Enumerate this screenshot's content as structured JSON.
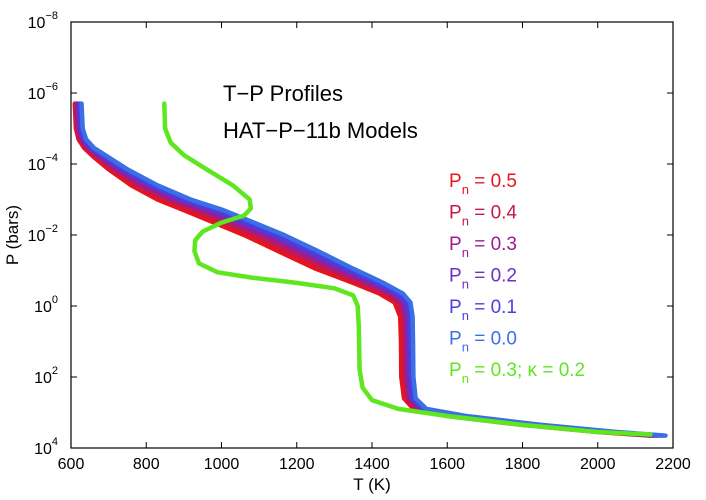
{
  "chart_data": {
    "type": "line",
    "title_lines": [
      "T−P Profiles",
      "HAT−P−11b Models"
    ],
    "xlabel": "T (K)",
    "ylabel": "P (bars)",
    "xlim": [
      600,
      2200
    ],
    "ylim_log_exponent": [
      -8,
      4
    ],
    "y_axis_reversed": true,
    "x_ticks": [
      600,
      800,
      1000,
      1200,
      1400,
      1600,
      1800,
      2000,
      2200
    ],
    "x_tick_labels": [
      "600",
      "800",
      "1000",
      "1200",
      "1400",
      "1600",
      "1800",
      "2000",
      "2200"
    ],
    "y_tick_exponents": [
      -8,
      -6,
      -4,
      -2,
      0,
      2,
      4
    ],
    "y_tick_base": "10",
    "y_tick_exp_labels": [
      "−8",
      "−6",
      "−4",
      "−2",
      "0",
      "2",
      "4"
    ],
    "series": [
      {
        "name": "Pn = 0.5",
        "legend": {
          "prefix": "P",
          "sub": "n",
          "suffix": " = 0.5"
        },
        "color": "#e8141c",
        "points": [
          [
            610,
            -5.7
          ],
          [
            613,
            -5.0
          ],
          [
            620,
            -4.7
          ],
          [
            635,
            -4.45
          ],
          [
            660,
            -4.2
          ],
          [
            700,
            -3.85
          ],
          [
            760,
            -3.4
          ],
          [
            830,
            -3.0
          ],
          [
            900,
            -2.7
          ],
          [
            980,
            -2.35
          ],
          [
            1060,
            -2.0
          ],
          [
            1150,
            -1.55
          ],
          [
            1250,
            -1.05
          ],
          [
            1350,
            -0.65
          ],
          [
            1420,
            -0.35
          ],
          [
            1460,
            -0.1
          ],
          [
            1475,
            0.3
          ],
          [
            1477,
            1.0
          ],
          [
            1478,
            2.0
          ],
          [
            1485,
            2.6
          ],
          [
            1510,
            2.9
          ],
          [
            1600,
            3.1
          ],
          [
            1800,
            3.35
          ],
          [
            2000,
            3.55
          ],
          [
            2140,
            3.65
          ]
        ]
      },
      {
        "name": "Pn = 0.4",
        "legend": {
          "prefix": "P",
          "sub": "n",
          "suffix": " = 0.4"
        },
        "color": "#c91848",
        "points": [
          [
            613,
            -5.7
          ],
          [
            616,
            -5.0
          ],
          [
            624,
            -4.7
          ],
          [
            640,
            -4.45
          ],
          [
            668,
            -4.2
          ],
          [
            710,
            -3.85
          ],
          [
            775,
            -3.4
          ],
          [
            850,
            -3.0
          ],
          [
            925,
            -2.7
          ],
          [
            1005,
            -2.35
          ],
          [
            1085,
            -2.0
          ],
          [
            1175,
            -1.55
          ],
          [
            1275,
            -1.05
          ],
          [
            1370,
            -0.65
          ],
          [
            1435,
            -0.35
          ],
          [
            1470,
            -0.1
          ],
          [
            1483,
            0.3
          ],
          [
            1485,
            1.0
          ],
          [
            1486,
            2.0
          ],
          [
            1492,
            2.6
          ],
          [
            1518,
            2.9
          ],
          [
            1610,
            3.1
          ],
          [
            1810,
            3.35
          ],
          [
            2010,
            3.55
          ],
          [
            2148,
            3.65
          ]
        ]
      },
      {
        "name": "Pn = 0.3",
        "legend": {
          "prefix": "P",
          "sub": "n",
          "suffix": " = 0.3"
        },
        "color": "#9b1d8f",
        "points": [
          [
            616,
            -5.7
          ],
          [
            619,
            -5.0
          ],
          [
            628,
            -4.7
          ],
          [
            645,
            -4.45
          ],
          [
            676,
            -4.2
          ],
          [
            720,
            -3.85
          ],
          [
            790,
            -3.4
          ],
          [
            870,
            -3.0
          ],
          [
            950,
            -2.7
          ],
          [
            1030,
            -2.35
          ],
          [
            1110,
            -2.0
          ],
          [
            1200,
            -1.55
          ],
          [
            1300,
            -1.05
          ],
          [
            1390,
            -0.65
          ],
          [
            1450,
            -0.35
          ],
          [
            1480,
            -0.1
          ],
          [
            1490,
            0.3
          ],
          [
            1492,
            1.0
          ],
          [
            1493,
            2.0
          ],
          [
            1499,
            2.6
          ],
          [
            1525,
            2.9
          ],
          [
            1620,
            3.1
          ],
          [
            1820,
            3.35
          ],
          [
            2020,
            3.55
          ],
          [
            2156,
            3.65
          ]
        ]
      },
      {
        "name": "Pn = 0.2",
        "legend": {
          "prefix": "P",
          "sub": "n",
          "suffix": " = 0.2"
        },
        "color": "#6a2fc4",
        "points": [
          [
            620,
            -5.7
          ],
          [
            623,
            -5.0
          ],
          [
            632,
            -4.7
          ],
          [
            651,
            -4.45
          ],
          [
            684,
            -4.2
          ],
          [
            732,
            -3.85
          ],
          [
            805,
            -3.4
          ],
          [
            888,
            -3.0
          ],
          [
            972,
            -2.7
          ],
          [
            1052,
            -2.35
          ],
          [
            1132,
            -2.0
          ],
          [
            1222,
            -1.55
          ],
          [
            1320,
            -1.05
          ],
          [
            1405,
            -0.65
          ],
          [
            1462,
            -0.35
          ],
          [
            1488,
            -0.1
          ],
          [
            1496,
            0.3
          ],
          [
            1498,
            1.0
          ],
          [
            1499,
            2.0
          ],
          [
            1505,
            2.6
          ],
          [
            1532,
            2.9
          ],
          [
            1630,
            3.1
          ],
          [
            1830,
            3.35
          ],
          [
            2030,
            3.55
          ],
          [
            2164,
            3.65
          ]
        ]
      },
      {
        "name": "Pn = 0.1",
        "legend": {
          "prefix": "P",
          "sub": "n",
          "suffix": " = 0.1"
        },
        "color": "#4b3ee0",
        "points": [
          [
            624,
            -5.7
          ],
          [
            627,
            -5.0
          ],
          [
            636,
            -4.7
          ],
          [
            656,
            -4.45
          ],
          [
            691,
            -4.2
          ],
          [
            742,
            -3.85
          ],
          [
            818,
            -3.4
          ],
          [
            904,
            -3.0
          ],
          [
            990,
            -2.7
          ],
          [
            1070,
            -2.35
          ],
          [
            1150,
            -2.0
          ],
          [
            1240,
            -1.55
          ],
          [
            1336,
            -1.05
          ],
          [
            1418,
            -0.65
          ],
          [
            1472,
            -0.35
          ],
          [
            1495,
            -0.1
          ],
          [
            1502,
            0.3
          ],
          [
            1503,
            1.0
          ],
          [
            1504,
            2.0
          ],
          [
            1510,
            2.6
          ],
          [
            1538,
            2.9
          ],
          [
            1640,
            3.1
          ],
          [
            1840,
            3.35
          ],
          [
            2040,
            3.55
          ],
          [
            2172,
            3.65
          ]
        ]
      },
      {
        "name": "Pn = 0.0",
        "legend": {
          "prefix": "P",
          "sub": "n",
          "suffix": " = 0.0"
        },
        "color": "#3a6fe8",
        "points": [
          [
            628,
            -5.7
          ],
          [
            631,
            -5.0
          ],
          [
            640,
            -4.7
          ],
          [
            661,
            -4.45
          ],
          [
            698,
            -4.2
          ],
          [
            750,
            -3.85
          ],
          [
            830,
            -3.4
          ],
          [
            918,
            -3.0
          ],
          [
            1005,
            -2.7
          ],
          [
            1086,
            -2.35
          ],
          [
            1166,
            -2.0
          ],
          [
            1256,
            -1.55
          ],
          [
            1350,
            -1.05
          ],
          [
            1430,
            -0.65
          ],
          [
            1482,
            -0.35
          ],
          [
            1502,
            -0.1
          ],
          [
            1508,
            0.3
          ],
          [
            1509,
            1.0
          ],
          [
            1510,
            2.0
          ],
          [
            1516,
            2.6
          ],
          [
            1544,
            2.9
          ],
          [
            1650,
            3.1
          ],
          [
            1850,
            3.35
          ],
          [
            2050,
            3.55
          ],
          [
            2180,
            3.65
          ]
        ]
      },
      {
        "name": "Pn = 0.3; κ = 0.2",
        "legend": {
          "prefix": "P",
          "sub": "n",
          "suffix": " = 0.3; κ = 0.2"
        },
        "color": "#5ee61f",
        "points": [
          [
            848,
            -5.7
          ],
          [
            850,
            -5.0
          ],
          [
            865,
            -4.6
          ],
          [
            900,
            -4.25
          ],
          [
            960,
            -3.85
          ],
          [
            1030,
            -3.4
          ],
          [
            1075,
            -3.0
          ],
          [
            1078,
            -2.75
          ],
          [
            1060,
            -2.55
          ],
          [
            1000,
            -2.35
          ],
          [
            950,
            -2.1
          ],
          [
            930,
            -1.85
          ],
          [
            928,
            -1.55
          ],
          [
            940,
            -1.2
          ],
          [
            990,
            -0.95
          ],
          [
            1080,
            -0.8
          ],
          [
            1200,
            -0.65
          ],
          [
            1300,
            -0.5
          ],
          [
            1350,
            -0.3
          ],
          [
            1362,
            0.0
          ],
          [
            1365,
            0.6
          ],
          [
            1366,
            1.2
          ],
          [
            1367,
            1.8
          ],
          [
            1375,
            2.3
          ],
          [
            1400,
            2.65
          ],
          [
            1470,
            2.9
          ],
          [
            1600,
            3.1
          ],
          [
            1800,
            3.35
          ],
          [
            2000,
            3.55
          ],
          [
            2140,
            3.62
          ]
        ]
      }
    ]
  }
}
